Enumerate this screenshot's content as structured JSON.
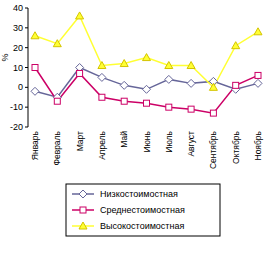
{
  "chart_data": {
    "type": "line",
    "y_label": "%",
    "categories": [
      "Январь",
      "Февраль",
      "Март",
      "Апрель",
      "Май",
      "Июнь",
      "Июль",
      "Август",
      "Сентябрь",
      "Октябрь",
      "Ноябрь"
    ],
    "series": [
      {
        "name": "Низкостоимостная",
        "color": "#666699",
        "marker": "diamond",
        "values": [
          -2,
          -5,
          10,
          5,
          1,
          -1,
          4,
          2,
          3,
          -1,
          2
        ]
      },
      {
        "name": "Среднестоимостная",
        "color": "#cc0066",
        "marker": "square",
        "values": [
          10,
          -7,
          7,
          -5,
          -7,
          -8,
          -10,
          -11,
          -13,
          1,
          6
        ]
      },
      {
        "name": "Высокостоимостная",
        "color": "#ffff33",
        "marker": "triangle",
        "values": [
          26,
          22,
          36,
          11,
          12,
          15,
          11,
          11,
          0,
          21,
          28
        ]
      }
    ],
    "ylim": [
      -20,
      40
    ],
    "yticks": [
      -20,
      -10,
      0,
      10,
      20,
      30,
      40
    ],
    "grid": false,
    "legend": "bottom"
  }
}
